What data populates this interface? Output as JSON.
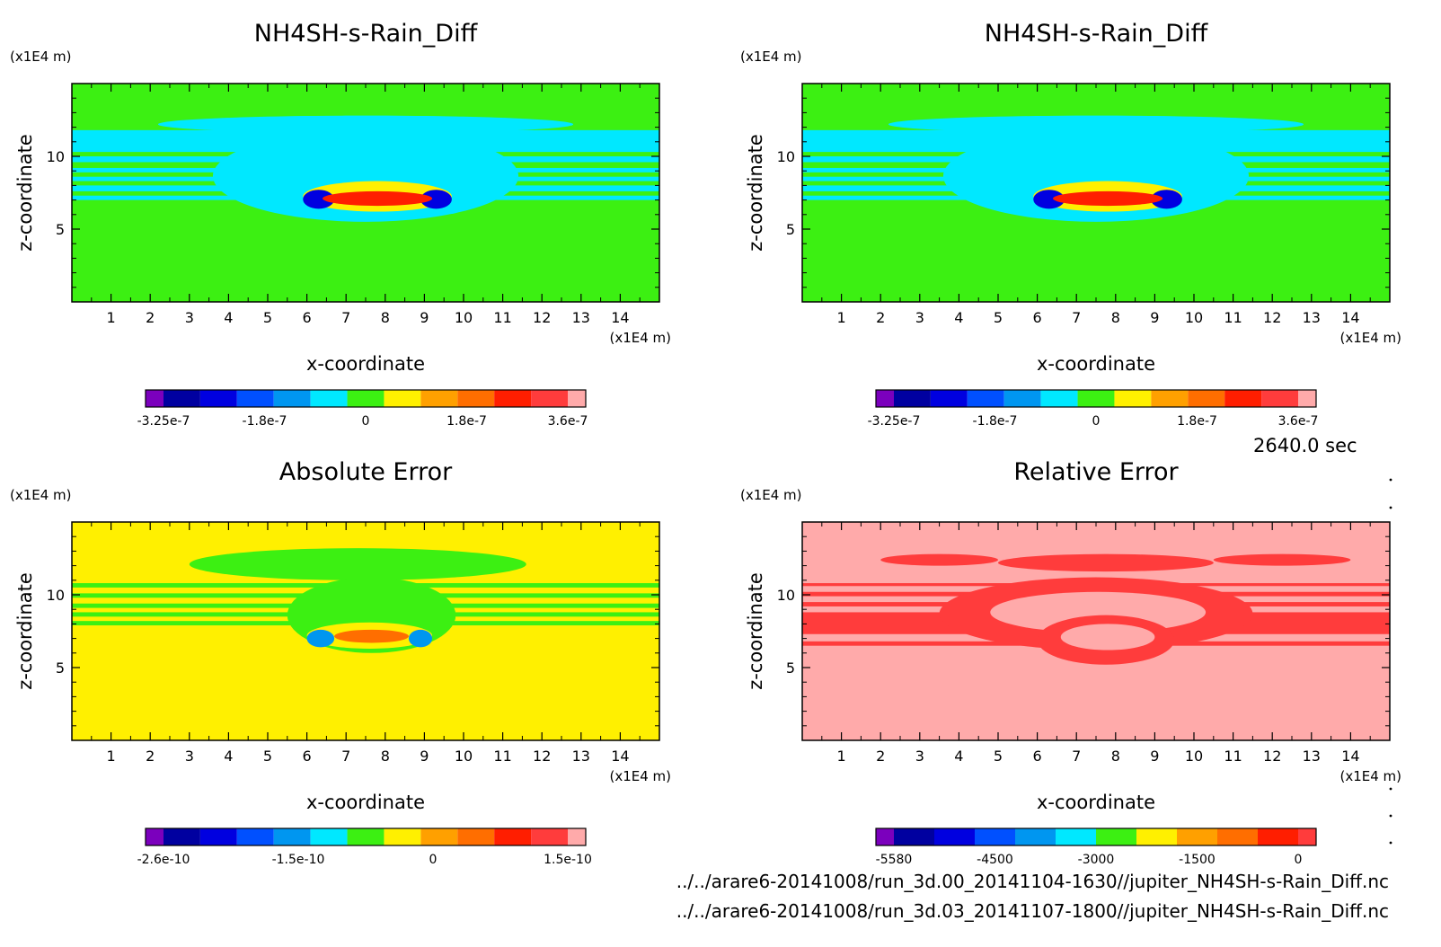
{
  "figure": {
    "time_label": "2640.0 sec",
    "file_paths": [
      "../../arare6-20141008/run_3d.00_20141104-1630//jupiter_NH4SH-s-Rain_Diff.nc",
      "../../arare6-20141008/run_3d.03_20141107-1800//jupiter_NH4SH-s-Rain_Diff.nc"
    ]
  },
  "chart_data": [
    {
      "type": "heatmap",
      "title": "NH4SH-s-Rain_Diff",
      "xlabel": "x-coordinate",
      "ylabel": "z-coordinate",
      "xunit": "(x1E4 m)",
      "yunit": "(x1E4 m)",
      "xlim": [
        0,
        15
      ],
      "ylim": [
        0,
        15
      ],
      "xticks": [
        "1",
        "2",
        "3",
        "4",
        "5",
        "6",
        "7",
        "8",
        "9",
        "10",
        "11",
        "12",
        "13",
        "14"
      ],
      "yticks": [
        "5",
        "10"
      ],
      "colorbar": {
        "colors": [
          "#7B00BD",
          "#0000A0",
          "#0000E0",
          "#0050FF",
          "#0096F0",
          "#00E8FF",
          "#3CF012",
          "#FFF000",
          "#FFA000",
          "#FF6E00",
          "#FF1E00",
          "#FF3C3C",
          "#FFAAAA"
        ],
        "tick_labels": [
          "-3.25e-7",
          "-1.8e-7",
          "0",
          "1.8e-7",
          "3.6e-7"
        ]
      },
      "background": "#3CF012",
      "bands": [
        {
          "z": [
            10.3,
            11.8
          ],
          "color": "#00E8FF"
        },
        {
          "z": [
            9.6,
            10.0
          ],
          "color": "#00E8FF"
        },
        {
          "z": [
            8.9,
            9.2
          ],
          "color": "#00E8FF"
        },
        {
          "z": [
            8.3,
            8.6
          ],
          "color": "#00E8FF"
        },
        {
          "z": [
            7.6,
            8.0
          ],
          "color": "#00E8FF"
        },
        {
          "z": [
            7.0,
            7.3
          ],
          "color": "#00E8FF"
        }
      ],
      "blobs": [
        {
          "x": [
            2.2,
            12.8
          ],
          "z": [
            11.6,
            12.8
          ],
          "color": "#00E8FF"
        },
        {
          "x": [
            3.6,
            11.4
          ],
          "z": [
            5.5,
            11.8
          ],
          "color": "#00E8FF"
        },
        {
          "x": [
            5.9,
            9.7
          ],
          "z": [
            6.2,
            8.3
          ],
          "color": "#FFF000"
        },
        {
          "x": [
            5.9,
            6.7
          ],
          "z": [
            6.4,
            7.7
          ],
          "color": "#0000E0"
        },
        {
          "x": [
            8.9,
            9.7
          ],
          "z": [
            6.4,
            7.7
          ],
          "color": "#0000E0"
        },
        {
          "x": [
            6.4,
            9.2
          ],
          "z": [
            6.6,
            7.6
          ],
          "color": "#FF1E00"
        }
      ]
    },
    {
      "type": "heatmap",
      "title": "NH4SH-s-Rain_Diff",
      "xlabel": "x-coordinate",
      "ylabel": "z-coordinate",
      "xunit": "(x1E4 m)",
      "yunit": "(x1E4 m)",
      "xlim": [
        0,
        15
      ],
      "ylim": [
        0,
        15
      ],
      "xticks": [
        "1",
        "2",
        "3",
        "4",
        "5",
        "6",
        "7",
        "8",
        "9",
        "10",
        "11",
        "12",
        "13",
        "14"
      ],
      "yticks": [
        "5",
        "10"
      ],
      "colorbar": {
        "colors": [
          "#7B00BD",
          "#0000A0",
          "#0000E0",
          "#0050FF",
          "#0096F0",
          "#00E8FF",
          "#3CF012",
          "#FFF000",
          "#FFA000",
          "#FF6E00",
          "#FF1E00",
          "#FF3C3C",
          "#FFAAAA"
        ],
        "tick_labels": [
          "-3.25e-7",
          "-1.8e-7",
          "0",
          "1.8e-7",
          "3.6e-7"
        ]
      },
      "background": "#3CF012",
      "bands": [
        {
          "z": [
            10.3,
            11.8
          ],
          "color": "#00E8FF"
        },
        {
          "z": [
            9.6,
            10.0
          ],
          "color": "#00E8FF"
        },
        {
          "z": [
            8.9,
            9.2
          ],
          "color": "#00E8FF"
        },
        {
          "z": [
            8.3,
            8.6
          ],
          "color": "#00E8FF"
        },
        {
          "z": [
            7.6,
            8.0
          ],
          "color": "#00E8FF"
        },
        {
          "z": [
            7.0,
            7.3
          ],
          "color": "#00E8FF"
        }
      ],
      "blobs": [
        {
          "x": [
            2.2,
            12.8
          ],
          "z": [
            11.6,
            12.8
          ],
          "color": "#00E8FF"
        },
        {
          "x": [
            3.6,
            11.4
          ],
          "z": [
            5.5,
            11.8
          ],
          "color": "#00E8FF"
        },
        {
          "x": [
            5.9,
            9.7
          ],
          "z": [
            6.2,
            8.3
          ],
          "color": "#FFF000"
        },
        {
          "x": [
            5.9,
            6.7
          ],
          "z": [
            6.4,
            7.7
          ],
          "color": "#0000E0"
        },
        {
          "x": [
            8.9,
            9.7
          ],
          "z": [
            6.4,
            7.7
          ],
          "color": "#0000E0"
        },
        {
          "x": [
            6.4,
            9.2
          ],
          "z": [
            6.6,
            7.6
          ],
          "color": "#FF1E00"
        }
      ]
    },
    {
      "type": "heatmap",
      "title": "Absolute Error",
      "xlabel": "x-coordinate",
      "ylabel": "z-coordinate",
      "xunit": "(x1E4 m)",
      "yunit": "(x1E4 m)",
      "xlim": [
        0,
        15
      ],
      "ylim": [
        0,
        15
      ],
      "xticks": [
        "1",
        "2",
        "3",
        "4",
        "5",
        "6",
        "7",
        "8",
        "9",
        "10",
        "11",
        "12",
        "13",
        "14"
      ],
      "yticks": [
        "5",
        "10"
      ],
      "colorbar": {
        "colors": [
          "#7B00BD",
          "#0000A0",
          "#0000E0",
          "#0050FF",
          "#0096F0",
          "#00E8FF",
          "#3CF012",
          "#FFF000",
          "#FFA000",
          "#FF6E00",
          "#FF1E00",
          "#FF3C3C",
          "#FFAAAA"
        ],
        "tick_labels": [
          "-2.6e-10",
          "-1.5e-10",
          "0",
          "1.5e-10"
        ]
      },
      "background": "#FFF000",
      "bands": [
        {
          "z": [
            10.5,
            10.8
          ],
          "color": "#3CF012"
        },
        {
          "z": [
            9.8,
            10.1
          ],
          "color": "#3CF012"
        },
        {
          "z": [
            9.1,
            9.4
          ],
          "color": "#3CF012"
        },
        {
          "z": [
            8.5,
            8.8
          ],
          "color": "#3CF012"
        },
        {
          "z": [
            7.9,
            8.2
          ],
          "color": "#3CF012"
        }
      ],
      "blobs": [
        {
          "x": [
            3.0,
            11.6
          ],
          "z": [
            11.0,
            13.2
          ],
          "color": "#3CF012"
        },
        {
          "x": [
            5.5,
            9.8
          ],
          "z": [
            6.0,
            11.2
          ],
          "color": "#3CF012"
        },
        {
          "x": [
            6.0,
            9.2
          ],
          "z": [
            6.3,
            8.1
          ],
          "color": "#FFF000"
        },
        {
          "x": [
            6.0,
            6.7
          ],
          "z": [
            6.4,
            7.6
          ],
          "color": "#0096F0"
        },
        {
          "x": [
            8.6,
            9.2
          ],
          "z": [
            6.4,
            7.6
          ],
          "color": "#0096F0"
        },
        {
          "x": [
            6.7,
            8.6
          ],
          "z": [
            6.7,
            7.6
          ],
          "color": "#FF6E00"
        }
      ]
    },
    {
      "type": "heatmap",
      "title": "Relative Error",
      "xlabel": "x-coordinate",
      "ylabel": "z-coordinate",
      "xunit": "(x1E4 m)",
      "yunit": "(x1E4 m)",
      "xlim": [
        0,
        15
      ],
      "ylim": [
        0,
        15
      ],
      "xticks": [
        "1",
        "2",
        "3",
        "4",
        "5",
        "6",
        "7",
        "8",
        "9",
        "10",
        "11",
        "12",
        "13",
        "14"
      ],
      "yticks": [
        "5",
        "10"
      ],
      "colorbar": {
        "colors": [
          "#7B00BD",
          "#0000A0",
          "#0000E0",
          "#0050FF",
          "#0096F0",
          "#00E8FF",
          "#3CF012",
          "#FFF000",
          "#FFA000",
          "#FF6E00",
          "#FF1E00",
          "#FF3C3C"
        ],
        "tick_labels": [
          "-5580",
          "-4500",
          "-3000",
          "-1500",
          "0"
        ]
      },
      "background": "#FFAAAA",
      "bands": [
        {
          "z": [
            10.6,
            10.8
          ],
          "color": "#FF3C3C"
        },
        {
          "z": [
            9.9,
            10.2
          ],
          "color": "#FF3C3C"
        },
        {
          "z": [
            9.2,
            9.5
          ],
          "color": "#FF3C3C"
        },
        {
          "z": [
            7.3,
            8.8
          ],
          "color": "#FF3C3C"
        },
        {
          "z": [
            6.5,
            6.8
          ],
          "color": "#FF3C3C"
        }
      ],
      "blobs": [
        {
          "x": [
            5.0,
            10.5
          ],
          "z": [
            11.6,
            12.8
          ],
          "color": "#FF3C3C"
        },
        {
          "x": [
            2.0,
            5.0
          ],
          "z": [
            12.0,
            12.8
          ],
          "color": "#FF3C3C"
        },
        {
          "x": [
            10.5,
            14.0
          ],
          "z": [
            12.0,
            12.8
          ],
          "color": "#FF3C3C"
        },
        {
          "x": [
            3.5,
            11.5
          ],
          "z": [
            6.2,
            11.2
          ],
          "color": "#FF3C3C"
        },
        {
          "x": [
            4.8,
            10.3
          ],
          "z": [
            7.4,
            10.2
          ],
          "color": "#FFAAAA"
        },
        {
          "x": [
            6.0,
            9.5
          ],
          "z": [
            5.2,
            8.6
          ],
          "color": "#FF3C3C"
        },
        {
          "x": [
            6.6,
            9.0
          ],
          "z": [
            6.2,
            8.0
          ],
          "color": "#FFAAAA"
        }
      ]
    }
  ]
}
